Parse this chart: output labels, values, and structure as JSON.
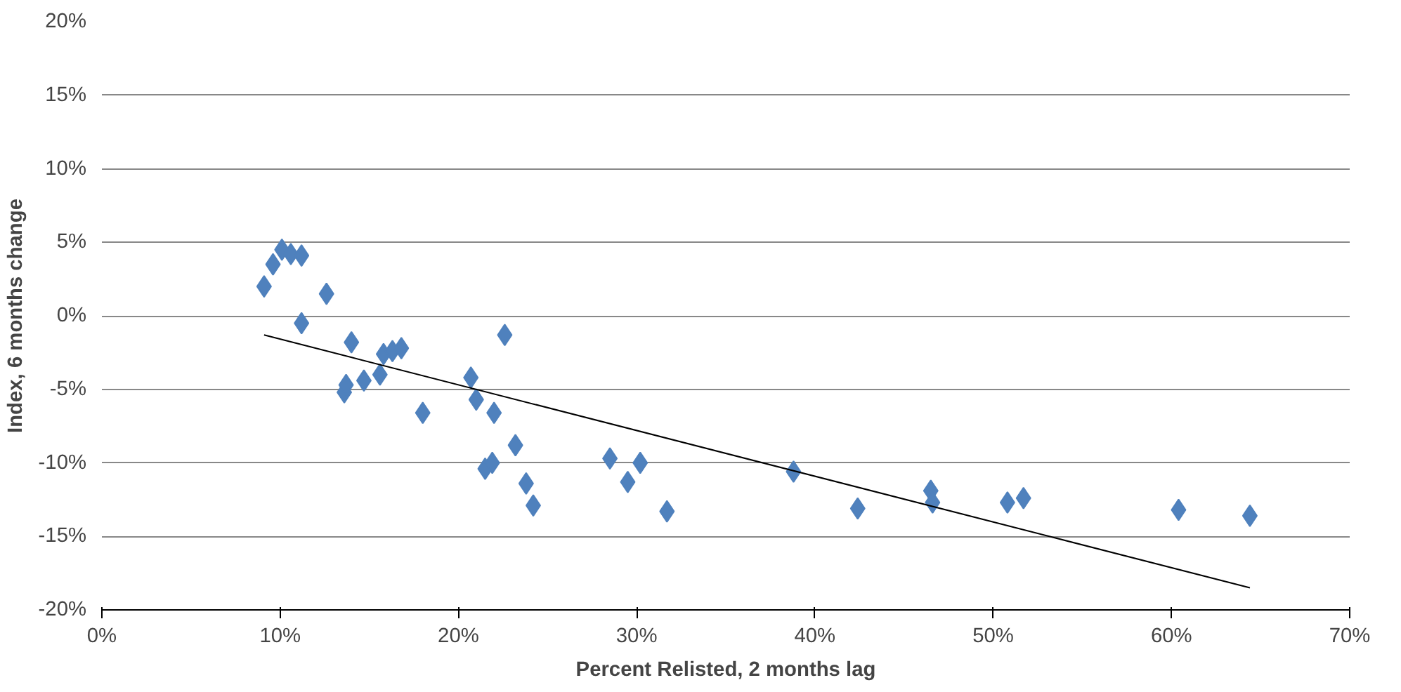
{
  "chart_data": {
    "type": "scatter",
    "xlabel": "Percent Relisted, 2 months lag",
    "ylabel": "Index, 6 months change",
    "xlim": [
      0,
      70
    ],
    "ylim": [
      -20,
      20
    ],
    "xticks": [
      {
        "value": 0,
        "label": "0%"
      },
      {
        "value": 10,
        "label": "10%"
      },
      {
        "value": 20,
        "label": "20%"
      },
      {
        "value": 30,
        "label": "30%"
      },
      {
        "value": 40,
        "label": "40%"
      },
      {
        "value": 50,
        "label": "50%"
      },
      {
        "value": 60,
        "label": "60%"
      },
      {
        "value": 70,
        "label": "70%"
      }
    ],
    "yticks": [
      {
        "value": -20,
        "label": "-20%"
      },
      {
        "value": -15,
        "label": "-15%"
      },
      {
        "value": -10,
        "label": "-10%"
      },
      {
        "value": -5,
        "label": "-5%"
      },
      {
        "value": 0,
        "label": "0%"
      },
      {
        "value": 5,
        "label": "5%"
      },
      {
        "value": 10,
        "label": "10%"
      },
      {
        "value": 15,
        "label": "15%"
      },
      {
        "value": 20,
        "label": "20%"
      }
    ],
    "grid": "y",
    "marker": "diamond",
    "series": [
      {
        "color": "#4f81bd",
        "x": [
          9.1,
          9.6,
          10.1,
          10.6,
          11.2,
          11.2,
          12.6,
          13.6,
          13.7,
          14.0,
          14.7,
          15.6,
          15.8,
          16.3,
          16.8,
          18.0,
          20.7,
          21.0,
          21.5,
          21.9,
          22.0,
          22.6,
          23.2,
          23.8,
          24.2,
          28.5,
          29.5,
          30.2,
          31.7,
          38.8,
          42.4,
          46.5,
          46.6,
          50.8,
          51.7,
          60.4,
          64.4
        ],
        "values": [
          2.0,
          3.5,
          4.5,
          4.2,
          4.1,
          -0.5,
          1.5,
          -5.2,
          -4.7,
          -1.8,
          -4.4,
          -4.0,
          -2.6,
          -2.4,
          -2.2,
          -6.6,
          -4.2,
          -5.7,
          -10.4,
          -10.0,
          -6.6,
          -1.3,
          -8.8,
          -11.4,
          -12.9,
          -9.7,
          -11.3,
          -10.0,
          -13.3,
          -10.6,
          -13.1,
          -11.9,
          -12.7,
          -12.7,
          -12.4,
          -13.2,
          -13.6
        ]
      },
      {
        "type": "line",
        "color": "#000000",
        "marker": "none",
        "x": [
          9.1,
          64.4
        ],
        "values": [
          -1.3,
          -18.5
        ]
      }
    ]
  }
}
